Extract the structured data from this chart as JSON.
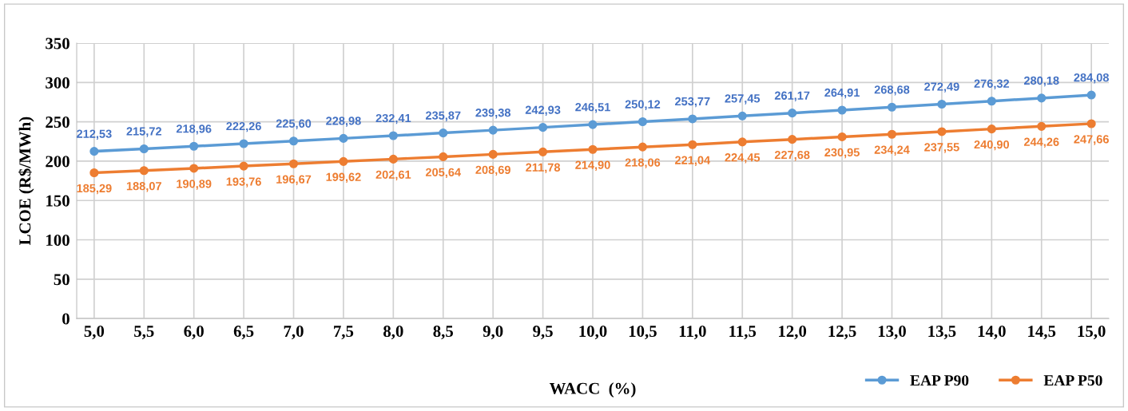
{
  "chart_data": {
    "type": "line",
    "xlabel": "WACC  (%)",
    "ylabel": "LCOE (R$/MWh)",
    "categories": [
      "5,0",
      "5,5",
      "6,0",
      "6,5",
      "7,0",
      "7,5",
      "8,0",
      "8,5",
      "9,0",
      "9,5",
      "10,0",
      "10,5",
      "11,0",
      "11,5",
      "12,0",
      "12,5",
      "13,0",
      "13,5",
      "14,0",
      "14,5",
      "15,0"
    ],
    "series": [
      {
        "name": "EAP P90",
        "color": "#5b9bd5",
        "values": [
          212.53,
          215.72,
          218.96,
          222.26,
          225.6,
          228.98,
          232.41,
          235.87,
          239.38,
          242.93,
          246.51,
          250.12,
          253.77,
          257.45,
          261.17,
          264.91,
          268.68,
          272.49,
          276.32,
          280.18,
          284.08
        ],
        "value_labels": [
          "212,53",
          "215,72",
          "218,96",
          "222,26",
          "225,60",
          "228,98",
          "232,41",
          "235,87",
          "239,38",
          "242,93",
          "246,51",
          "250,12",
          "253,77",
          "257,45",
          "261,17",
          "264,91",
          "268,68",
          "272,49",
          "276,32",
          "280,18",
          "284,08"
        ]
      },
      {
        "name": "EAP P50",
        "color": "#ed7d31",
        "values": [
          185.29,
          188.07,
          190.89,
          193.76,
          196.67,
          199.62,
          202.61,
          205.64,
          208.69,
          211.78,
          214.9,
          218.06,
          221.04,
          224.45,
          227.68,
          230.95,
          234.24,
          237.55,
          240.9,
          244.26,
          247.66
        ],
        "value_labels": [
          "185,29",
          "188,07",
          "190,89",
          "193,76",
          "196,67",
          "199,62",
          "202,61",
          "205,64",
          "208,69",
          "211,78",
          "214,90",
          "218,06",
          "221,04",
          "224,45",
          "227,68",
          "230,95",
          "234,24",
          "237,55",
          "240,90",
          "244,26",
          "247,66"
        ]
      }
    ],
    "ylim": [
      0,
      350
    ],
    "yticks": [
      0,
      50,
      100,
      150,
      200,
      250,
      300,
      350
    ],
    "grid": true,
    "legend": "bottom right",
    "marker": "circle",
    "line_style": "solid"
  }
}
